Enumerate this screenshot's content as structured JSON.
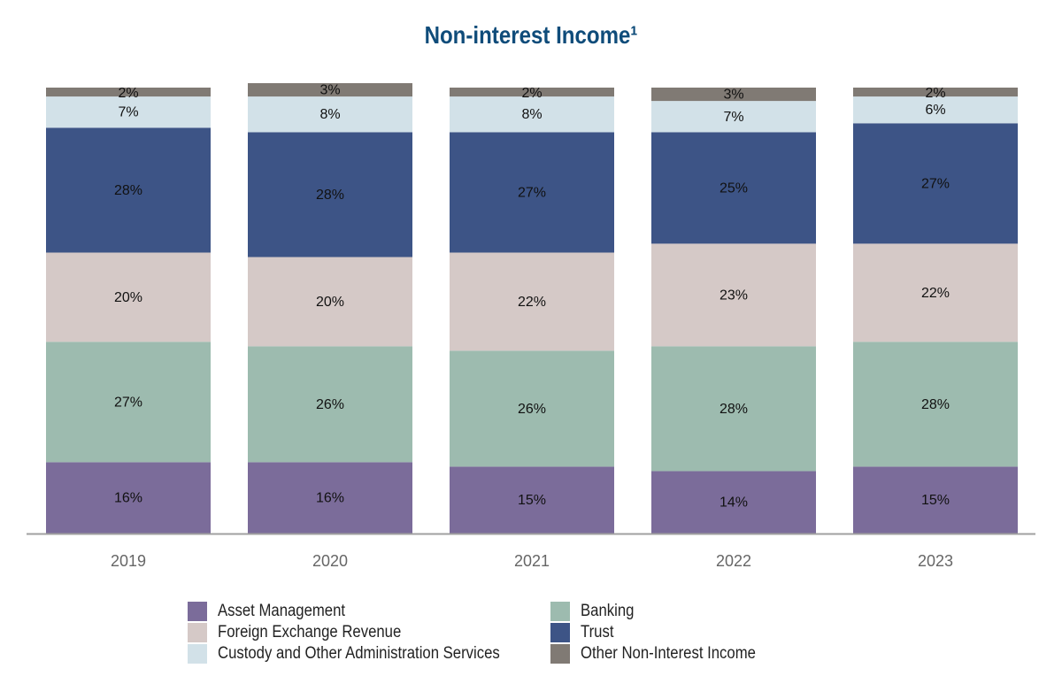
{
  "chart_data": {
    "type": "bar",
    "stacked": true,
    "title": "Non-interest Income¹",
    "xlabel": "",
    "ylabel": "",
    "ylim": [
      0,
      100
    ],
    "grid": false,
    "legend_position": "bottom",
    "categories": [
      "2019",
      "2020",
      "2021",
      "2022",
      "2023"
    ],
    "series": [
      {
        "name": "Asset Management",
        "color": "#7b6c9a",
        "values": [
          16,
          16,
          15,
          14,
          15
        ],
        "labels": [
          "16%",
          "16%",
          "15%",
          "14%",
          "15%"
        ]
      },
      {
        "name": "Banking",
        "color": "#9dbbaf",
        "values": [
          27,
          26,
          26,
          28,
          28
        ],
        "labels": [
          "27%",
          "26%",
          "26%",
          "28%",
          "28%"
        ]
      },
      {
        "name": "Foreign Exchange Revenue",
        "color": "#d5c9c7",
        "values": [
          20,
          20,
          22,
          23,
          22
        ],
        "labels": [
          "20%",
          "20%",
          "22%",
          "23%",
          "22%"
        ]
      },
      {
        "name": "Trust",
        "color": "#3d5486",
        "values": [
          28,
          28,
          27,
          25,
          27
        ],
        "labels": [
          "28%",
          "28%",
          "27%",
          "25%",
          "27%"
        ]
      },
      {
        "name": "Custody and Other Administration Services",
        "color": "#d2e1e8",
        "values": [
          7,
          8,
          8,
          7,
          6
        ],
        "labels": [
          "7%",
          "8%",
          "8%",
          "7%",
          "6%"
        ]
      },
      {
        "name": "Other Non-Interest Income",
        "color": "#807a74",
        "values": [
          2,
          3,
          2,
          3,
          2
        ],
        "labels": [
          "2%",
          "3%",
          "2%",
          "3%",
          "2%"
        ]
      }
    ]
  }
}
